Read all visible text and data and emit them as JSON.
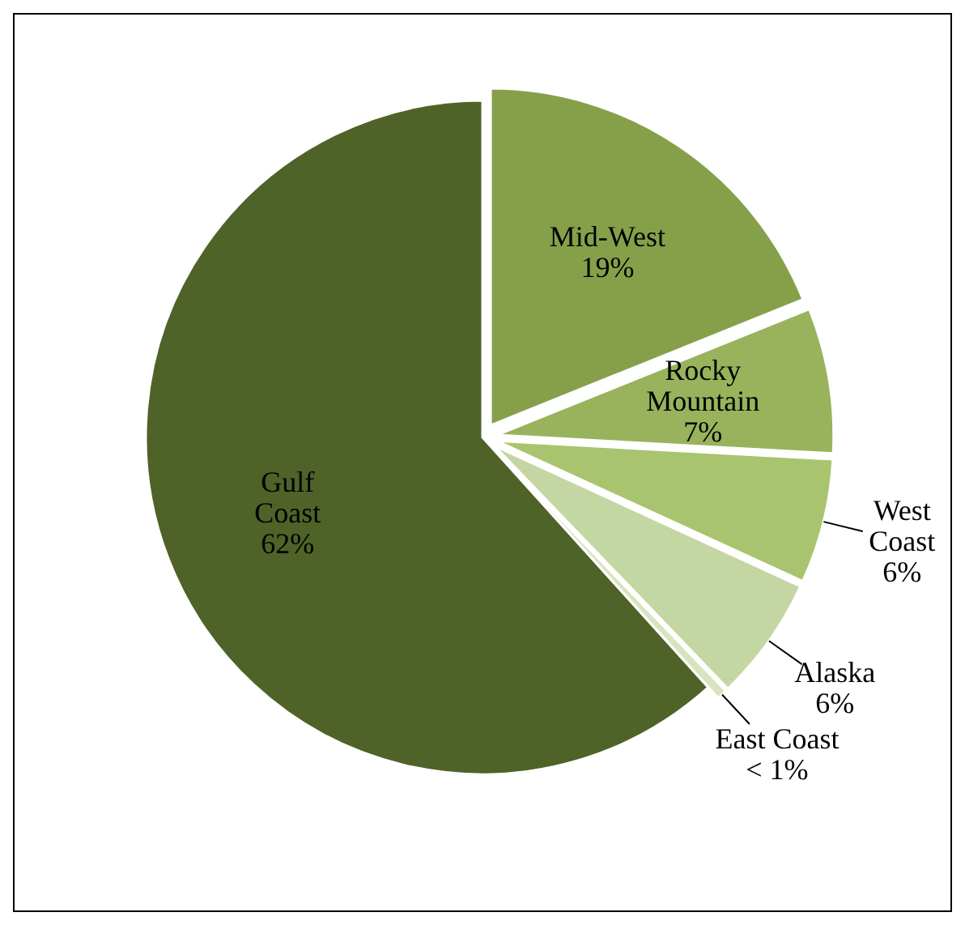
{
  "chart_data": {
    "type": "pie",
    "categories": [
      "Mid-West",
      "Rocky Mountain",
      "West Coast",
      "Alaska",
      "East Coast",
      "Gulf Coast"
    ],
    "values": [
      19,
      7,
      6,
      6,
      0.5,
      62
    ],
    "colors": [
      "#86a04a",
      "#98b35c",
      "#a9c46f",
      "#c4d6a1",
      "#d8e4be",
      "#4f6228"
    ],
    "value_labels": [
      "19%",
      "7%",
      "6%",
      "6%",
      "< 1%",
      "62%"
    ]
  }
}
